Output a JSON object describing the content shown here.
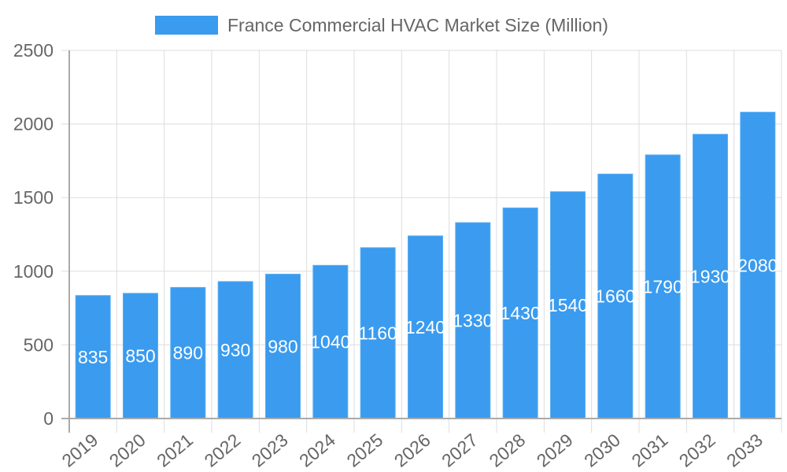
{
  "chart_data": {
    "type": "bar",
    "legend": {
      "label": "France Commercial HVAC Market Size (Million)",
      "placement": "top"
    },
    "categories": [
      "2019",
      "2020",
      "2021",
      "2022",
      "2023",
      "2024",
      "2025",
      "2026",
      "2027",
      "2028",
      "2029",
      "2030",
      "2031",
      "2032",
      "2033"
    ],
    "series": [
      {
        "name": "France Commercial HVAC Market Size (Million)",
        "values": [
          835,
          850,
          890,
          930,
          980,
          1040,
          1160,
          1240,
          1330,
          1430,
          1540,
          1660,
          1790,
          1930,
          2080
        ]
      }
    ],
    "ylim": [
      0,
      2500
    ],
    "yticks": [
      0,
      500,
      1000,
      1500,
      2000,
      2500
    ],
    "grid": true,
    "data_labels": "inside-center",
    "colors": {
      "bar": "#3a9bef",
      "bar_border": "#5aaef2",
      "label": "#ffffff",
      "text": "#666666",
      "grid": "#dddddd",
      "axis": "#aaaaaa"
    }
  }
}
